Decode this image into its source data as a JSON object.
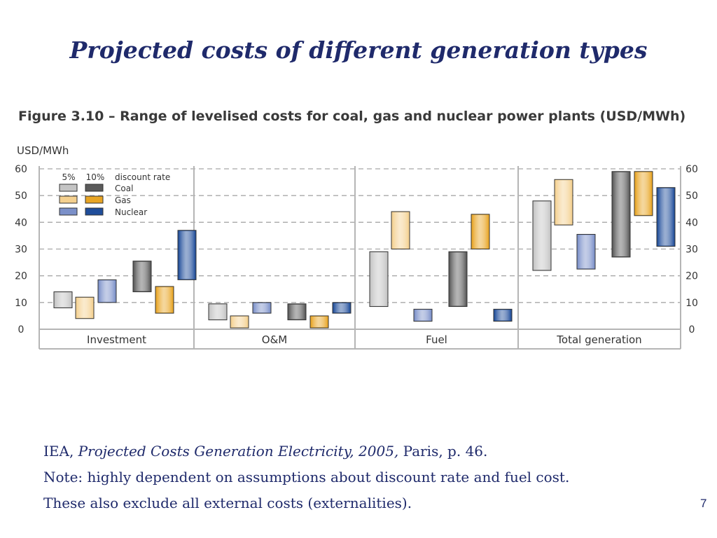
{
  "slide": {
    "title": "Projected costs of different generation types",
    "page_number": "7"
  },
  "references": {
    "source_prefix": "IEA, ",
    "source_title": "Projected Costs Generation Electricity, 2005,",
    "source_suffix": " Paris, p. 46.",
    "note1": "Note: highly dependent on assumptions about discount rate and fuel cost.",
    "note2": "These also exclude all external costs (externalities)."
  },
  "chart_data": {
    "type": "bar",
    "subtype": "floating-range",
    "title": "Figure 3.10 – Range of levelised costs for coal, gas and nuclear power plants (USD/MWh)",
    "ylabel": "USD/MWh",
    "ylim": [
      0,
      60
    ],
    "yticks": [
      "0",
      "10",
      "20",
      "30",
      "40",
      "50",
      "60"
    ],
    "grid": true,
    "legend": {
      "placement": "top-left",
      "rate_labels": [
        "5%",
        "10%"
      ],
      "rate_title": "discount rate",
      "entries": [
        "Coal",
        "Gas",
        "Nuclear"
      ]
    },
    "colors": {
      "Coal": {
        "5%": "#c4c4c4",
        "10%": "#5a5a5a"
      },
      "Gas": {
        "5%": "#f4d08f",
        "10%": "#e8a524"
      },
      "Nuclear": {
        "5%": "#7b90c9",
        "10%": "#1f4d9a"
      }
    },
    "categories": [
      "Investment",
      "O&M",
      "Fuel",
      "Total generation"
    ],
    "series": [
      {
        "name": "Coal",
        "rate": "5%",
        "ranges": [
          [
            8,
            14
          ],
          [
            3.5,
            9.5
          ],
          [
            8.5,
            29
          ],
          [
            22,
            48
          ]
        ]
      },
      {
        "name": "Gas",
        "rate": "5%",
        "ranges": [
          [
            4,
            12
          ],
          [
            0.5,
            5
          ],
          [
            30,
            44
          ],
          [
            39,
            56
          ]
        ]
      },
      {
        "name": "Nuclear",
        "rate": "5%",
        "ranges": [
          [
            10,
            18.5
          ],
          [
            6,
            10
          ],
          [
            3,
            7.5
          ],
          [
            22.5,
            35.5
          ]
        ]
      },
      {
        "name": "Coal",
        "rate": "10%",
        "ranges": [
          [
            14,
            25.5
          ],
          [
            3.5,
            9.5
          ],
          [
            8.5,
            29
          ],
          [
            27,
            59
          ]
        ]
      },
      {
        "name": "Gas",
        "rate": "10%",
        "ranges": [
          [
            6,
            16
          ],
          [
            0.5,
            5
          ],
          [
            30,
            43
          ],
          [
            42.5,
            59
          ]
        ]
      },
      {
        "name": "Nuclear",
        "rate": "10%",
        "ranges": [
          [
            18.5,
            37
          ],
          [
            6,
            10
          ],
          [
            3,
            7.5
          ],
          [
            31,
            53
          ]
        ]
      }
    ]
  }
}
